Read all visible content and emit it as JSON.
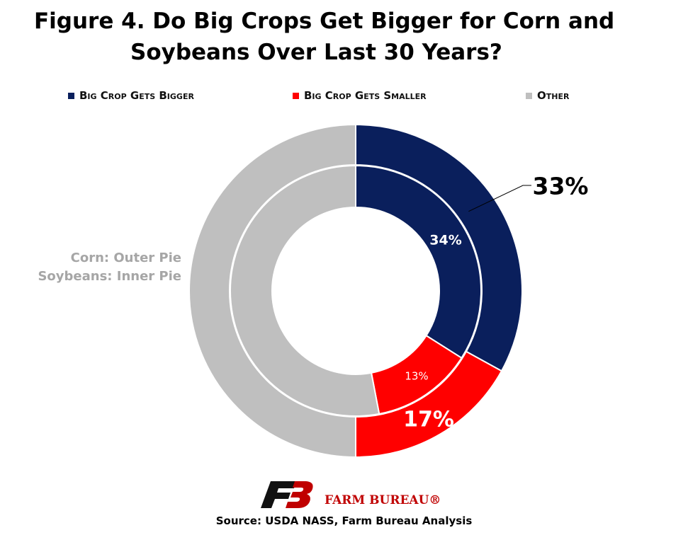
{
  "chart_data": {
    "type": "pie",
    "subtype": "donut",
    "title": [
      "Figure 4. Do Big Crops Get Bigger for Corn and",
      "Soybeans Over Last 30 Years?"
    ],
    "categories": [
      "Big Crop Gets Bigger",
      "Big Crop Gets Smaller",
      "Other"
    ],
    "series": [
      {
        "name": "Corn: Outer Pie",
        "values": [
          33,
          17,
          50
        ]
      },
      {
        "name": "Soybeans: Inner Pie",
        "values": [
          34,
          13,
          53
        ]
      }
    ],
    "data_labels": {
      "outer": [
        "33%",
        "17%"
      ],
      "inner": [
        "34%",
        "13%"
      ]
    },
    "colors": [
      "#0a1f5c",
      "#ff0000",
      "#bfbfbf"
    ],
    "legend_position": "top",
    "annotation": [
      "Corn: Outer Pie",
      "Soybeans: Inner Pie"
    ]
  },
  "legend": {
    "items": [
      {
        "label": "Big Crop Gets Bigger",
        "color": "#0a1f5c"
      },
      {
        "label": "Big Crop Gets Smaller",
        "color": "#ff0000"
      },
      {
        "label": "Other",
        "color": "#bfbfbf"
      }
    ]
  },
  "logo": {
    "text": "FARM BUREAU®",
    "icon": "farm-bureau-fb-logo"
  },
  "source": "Source: USDA NASS, Farm Bureau Analysis"
}
